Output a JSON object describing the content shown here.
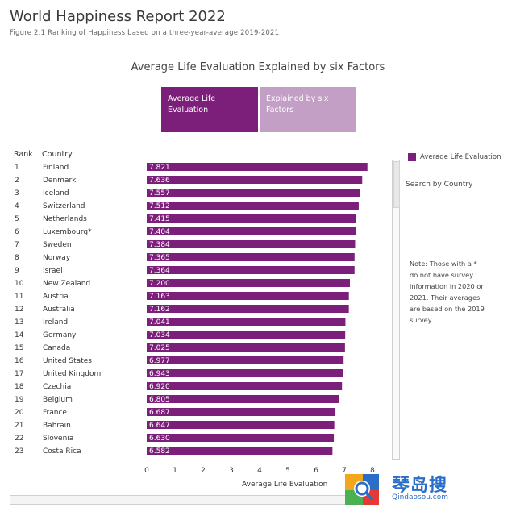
{
  "header": {
    "title": "World Happiness Report 2022",
    "subtitle": "Figure 2.1 Ranking of Happiness based on a three-year-average 2019-2021"
  },
  "tabs": [
    {
      "label": "Average Life Evaluation",
      "active": true
    },
    {
      "label": "Explained by six Factors",
      "active": false
    }
  ],
  "columns": {
    "rank": "Rank",
    "country": "Country"
  },
  "legend": {
    "label": "Average Life Evaluation",
    "color": "#7b1f7a"
  },
  "sidebar": {
    "search_label": "Search by Country",
    "note": "Note: Those with a * do not have survey information in 2020 or 2021. Their averages are based on the 2019 survey"
  },
  "watermark": {
    "chinese": "琴岛搜",
    "url": "Qindaosou.com"
  },
  "chart_data": {
    "type": "bar",
    "title": "Average Life Evaluation Explained by six Factors",
    "xlabel": "Average Life Evaluation",
    "xlim": [
      0,
      8
    ],
    "xticks": [
      0,
      1,
      2,
      3,
      4,
      5,
      6,
      7,
      8
    ],
    "bar_color": "#7b1f7a",
    "rows": [
      {
        "rank": "1",
        "country": "Finland",
        "value": 7.821
      },
      {
        "rank": "2",
        "country": "Denmark",
        "value": 7.636
      },
      {
        "rank": "3",
        "country": "Iceland",
        "value": 7.557
      },
      {
        "rank": "4",
        "country": "Switzerland",
        "value": 7.512
      },
      {
        "rank": "5",
        "country": "Netherlands",
        "value": 7.415
      },
      {
        "rank": "6",
        "country": "Luxembourg*",
        "value": 7.404
      },
      {
        "rank": "7",
        "country": "Sweden",
        "value": 7.384
      },
      {
        "rank": "8",
        "country": "Norway",
        "value": 7.365
      },
      {
        "rank": "9",
        "country": "Israel",
        "value": 7.364
      },
      {
        "rank": "10",
        "country": "New Zealand",
        "value": 7.2
      },
      {
        "rank": "11",
        "country": "Austria",
        "value": 7.163
      },
      {
        "rank": "12",
        "country": "Australia",
        "value": 7.162
      },
      {
        "rank": "13",
        "country": "Ireland",
        "value": 7.041
      },
      {
        "rank": "14",
        "country": "Germany",
        "value": 7.034
      },
      {
        "rank": "15",
        "country": "Canada",
        "value": 7.025
      },
      {
        "rank": "16",
        "country": "United States",
        "value": 6.977
      },
      {
        "rank": "17",
        "country": "United Kingdom",
        "value": 6.943
      },
      {
        "rank": "18",
        "country": "Czechia",
        "value": 6.92
      },
      {
        "rank": "19",
        "country": "Belgium",
        "value": 6.805
      },
      {
        "rank": "20",
        "country": "France",
        "value": 6.687
      },
      {
        "rank": "21",
        "country": "Bahrain",
        "value": 6.647
      },
      {
        "rank": "22",
        "country": "Slovenia",
        "value": 6.63
      },
      {
        "rank": "23",
        "country": "Costa Rica",
        "value": 6.582
      }
    ]
  }
}
